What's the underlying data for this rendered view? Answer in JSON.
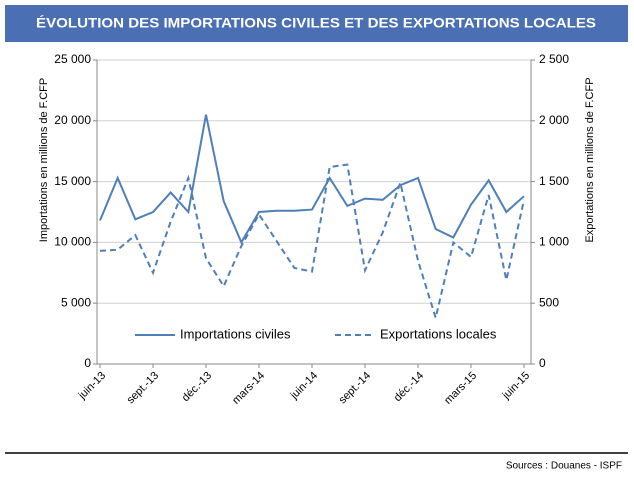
{
  "chart_data": {
    "type": "line",
    "title": "ÉVOLUTION DES IMPORTATIONS CIVILES ET DES EXPORTATIONS LOCALES",
    "ylabel": "Importations en millions de F.CFP",
    "y2label": "Exportations en millions de F.CFP",
    "source": "Sources : Douanes - ISPF",
    "categories": [
      "juin-13",
      null,
      null,
      "sept.-13",
      null,
      null,
      "déc.-13",
      null,
      null,
      "mars-14",
      null,
      null,
      "juin-14",
      null,
      null,
      "sept.-14",
      null,
      null,
      "déc.-14",
      null,
      null,
      "mars-15",
      null,
      null,
      "juin-15"
    ],
    "series": [
      {
        "name": "Importations civiles",
        "color": "#4f7fb8",
        "dashed": false,
        "values": [
          11800,
          15300,
          11900,
          12500,
          14100,
          12500,
          20500,
          13400,
          10000,
          12500,
          12600,
          12600,
          12700,
          15300,
          13000,
          13600,
          13500,
          14700,
          15300,
          11100,
          10400,
          13100,
          15100,
          12500,
          13800
        ]
      },
      {
        "name": "Exportations locales",
        "color": "#4f7fb8",
        "dashed": true,
        "axis": "y2",
        "values": [
          930,
          940,
          1060,
          750,
          1170,
          1530,
          870,
          640,
          970,
          1230,
          1010,
          790,
          760,
          1620,
          1640,
          770,
          1080,
          1490,
          850,
          380,
          1000,
          880,
          1390,
          690,
          1350
        ]
      }
    ],
    "ylim": [
      0,
      25000
    ],
    "yticks": [
      0,
      {
        "value": 5000,
        "label": "5 000"
      },
      {
        "value": 10000,
        "label": "10 000"
      },
      {
        "value": 15000,
        "label": "15 000"
      },
      {
        "value": 20000,
        "label": "20 000"
      },
      {
        "value": 25000,
        "label": "25 000"
      }
    ],
    "y2lim": [
      0,
      2500
    ],
    "y2ticks": [
      0,
      500,
      {
        "value": 1000,
        "label": "1 000"
      },
      {
        "value": 1500,
        "label": "1 500"
      },
      {
        "value": 2000,
        "label": "2 000"
      },
      {
        "value": 2500,
        "label": "2 500"
      }
    ],
    "grid": true,
    "legend": "lower center"
  }
}
